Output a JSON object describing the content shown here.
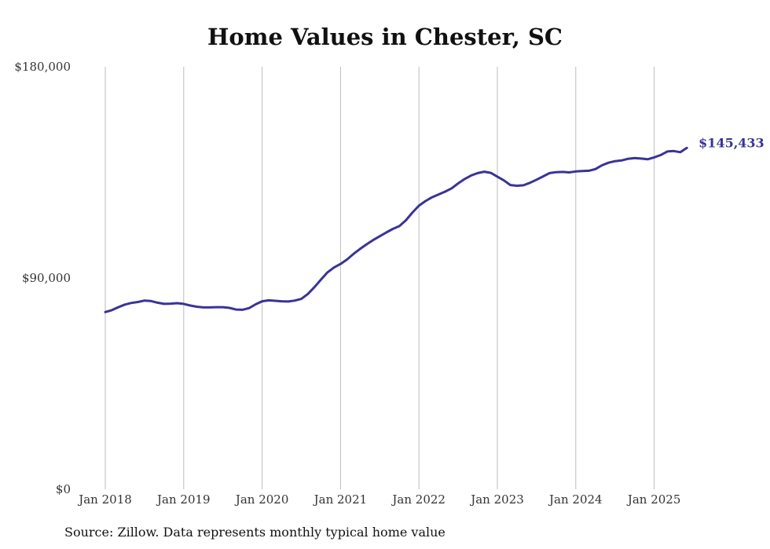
{
  "chart_data": {
    "type": "line",
    "title": "Home Values in Chester, SC",
    "xlabel": "",
    "ylabel": "",
    "ylim": [
      0,
      180000
    ],
    "y_ticks": [
      0,
      90000,
      180000
    ],
    "y_tick_labels": [
      "$0",
      "$90,000",
      "$180,000"
    ],
    "x_ticks": [
      "2018-01",
      "2019-01",
      "2020-01",
      "2021-01",
      "2022-01",
      "2023-01",
      "2024-01",
      "2025-01"
    ],
    "x_tick_labels": [
      "Jan 2018",
      "Jan 2019",
      "Jan 2020",
      "Jan 2021",
      "Jan 2022",
      "Jan 2023",
      "Jan 2024",
      "Jan 2025"
    ],
    "grid": "vertical",
    "color": "#3a3397",
    "end_label": "$145,433",
    "x": [
      "2018-01",
      "2018-02",
      "2018-03",
      "2018-04",
      "2018-05",
      "2018-06",
      "2018-07",
      "2018-08",
      "2018-09",
      "2018-10",
      "2018-11",
      "2018-12",
      "2019-01",
      "2019-02",
      "2019-03",
      "2019-04",
      "2019-05",
      "2019-06",
      "2019-07",
      "2019-08",
      "2019-09",
      "2019-10",
      "2019-11",
      "2019-12",
      "2020-01",
      "2020-02",
      "2020-03",
      "2020-04",
      "2020-05",
      "2020-06",
      "2020-07",
      "2020-08",
      "2020-09",
      "2020-10",
      "2020-11",
      "2020-12",
      "2021-01",
      "2021-02",
      "2021-03",
      "2021-04",
      "2021-05",
      "2021-06",
      "2021-07",
      "2021-08",
      "2021-09",
      "2021-10",
      "2021-11",
      "2021-12",
      "2022-01",
      "2022-02",
      "2022-03",
      "2022-04",
      "2022-05",
      "2022-06",
      "2022-07",
      "2022-08",
      "2022-09",
      "2022-10",
      "2022-11",
      "2022-12",
      "2023-01",
      "2023-02",
      "2023-03",
      "2023-04",
      "2023-05",
      "2023-06",
      "2023-07",
      "2023-08",
      "2023-09",
      "2023-10",
      "2023-11",
      "2023-12",
      "2024-01",
      "2024-02",
      "2024-03",
      "2024-04",
      "2024-05",
      "2024-06",
      "2024-07",
      "2024-08",
      "2024-09",
      "2024-10",
      "2024-11",
      "2024-12",
      "2025-01",
      "2025-02",
      "2025-03",
      "2025-04",
      "2025-05",
      "2025-06"
    ],
    "values": [
      75500,
      76300,
      77600,
      78700,
      79400,
      79800,
      80400,
      80200,
      79500,
      79000,
      79100,
      79300,
      79000,
      78300,
      77800,
      77500,
      77500,
      77600,
      77600,
      77300,
      76600,
      76500,
      77200,
      78800,
      80100,
      80500,
      80300,
      80100,
      80000,
      80400,
      81100,
      83200,
      86100,
      89300,
      92400,
      94500,
      96000,
      97900,
      100300,
      102400,
      104400,
      106200,
      107800,
      109400,
      110900,
      112100,
      114600,
      117900,
      120800,
      122800,
      124400,
      125600,
      126800,
      128200,
      130300,
      132200,
      133700,
      134700,
      135300,
      134800,
      133200,
      131600,
      129600,
      129300,
      129500,
      130600,
      131900,
      133300,
      134700,
      135100,
      135200,
      135000,
      135400,
      135600,
      135700,
      136400,
      138000,
      139100,
      139800,
      140100,
      140800,
      141100,
      140900,
      140600,
      141400,
      142400,
      143900,
      144100,
      143600,
      145433
    ]
  },
  "source_note": "Source: Zillow. Data represents monthly typical home value"
}
